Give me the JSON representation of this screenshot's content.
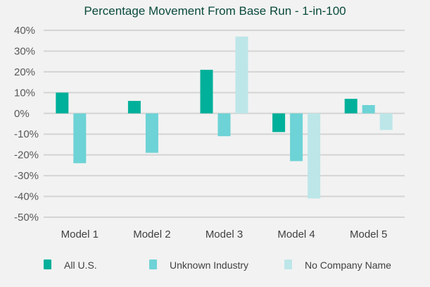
{
  "chart_data": {
    "type": "bar",
    "title": "Percentage Movement From Base Run - 1-in-100",
    "xlabel": "",
    "ylabel": "",
    "categories": [
      "Model 1",
      "Model 2",
      "Model 3",
      "Model 4",
      "Model 5"
    ],
    "series": [
      {
        "name": "All U.S.",
        "values": [
          10,
          6,
          21,
          -9,
          7
        ],
        "color": "#00b09a"
      },
      {
        "name": "Unknown Industry",
        "values": [
          -24,
          -19,
          -11,
          -23,
          4
        ],
        "color": "#6dd3d6"
      },
      {
        "name": "No Company Name",
        "values": [
          0,
          0,
          37,
          -41,
          -8
        ],
        "color": "#bde6e9"
      }
    ],
    "ylim": [
      -50,
      40
    ],
    "yticks": [
      "40%",
      "30%",
      "20%",
      "10%",
      "0%",
      "-10%",
      "-20%",
      "-30%",
      "-40%",
      "-50%"
    ],
    "ytick_values": [
      40,
      30,
      20,
      10,
      0,
      -10,
      -20,
      -30,
      -40,
      -50
    ],
    "grid": true,
    "legend_position": "bottom"
  }
}
